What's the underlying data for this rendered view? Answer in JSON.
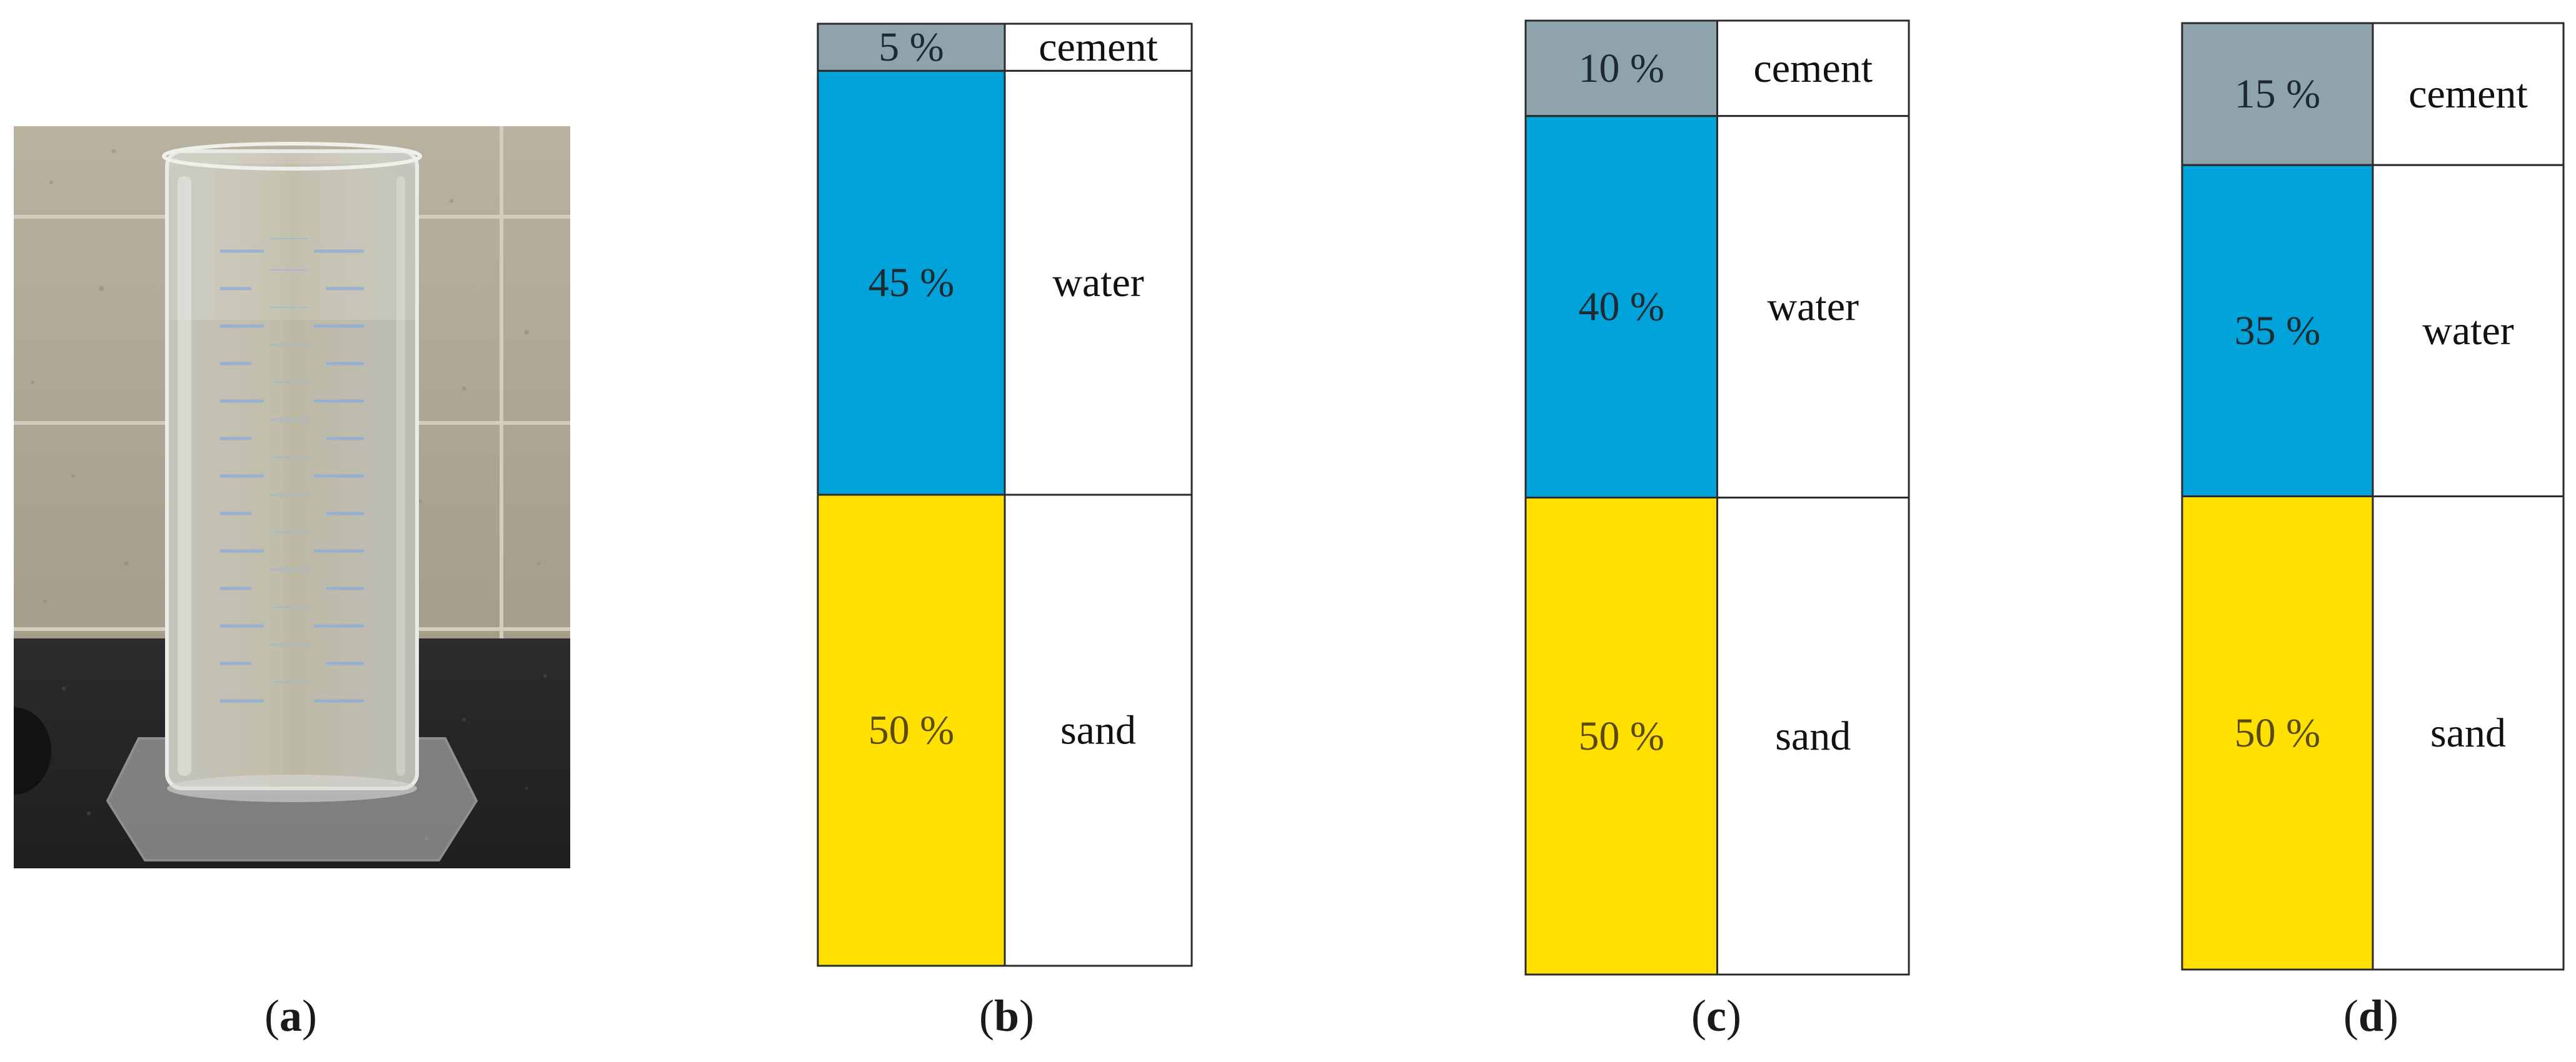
{
  "colors": {
    "cement": "#8fa3ad",
    "water": "#00a3d9",
    "sand": "#ffe000",
    "label_cell": "#ffffff",
    "border": "#2b2b2b"
  },
  "photo": {
    "icon": "graduated-cylinder-photo"
  },
  "panels": [
    {
      "caption_open": "(",
      "caption_letter": "a",
      "caption_close": ")"
    },
    {
      "caption_open": "(",
      "caption_letter": "b",
      "caption_close": ")",
      "components": [
        {
          "name": "cement",
          "percent": 5,
          "label": "5 %"
        },
        {
          "name": "water",
          "percent": 45,
          "label": "45 %"
        },
        {
          "name": "sand",
          "percent": 50,
          "label": "50 %"
        }
      ]
    },
    {
      "caption_open": "(",
      "caption_letter": "c",
      "caption_close": ")",
      "components": [
        {
          "name": "cement",
          "percent": 10,
          "label": "10 %"
        },
        {
          "name": "water",
          "percent": 40,
          "label": "40 %"
        },
        {
          "name": "sand",
          "percent": 50,
          "label": "50 %"
        }
      ]
    },
    {
      "caption_open": "(",
      "caption_letter": "d",
      "caption_close": ")",
      "components": [
        {
          "name": "cement",
          "percent": 15,
          "label": "15 %"
        },
        {
          "name": "water",
          "percent": 35,
          "label": "35 %"
        },
        {
          "name": "sand",
          "percent": 50,
          "label": "50 %"
        }
      ]
    }
  ]
}
